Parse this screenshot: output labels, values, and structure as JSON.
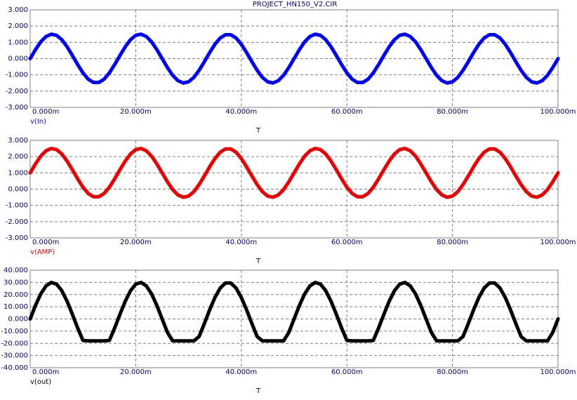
{
  "chart_data": [
    {
      "type": "line",
      "title": "PROJECT_HN150_V2.CIR",
      "xlabel": "T",
      "grid": true,
      "x": [
        0,
        0.001,
        0.002,
        0.003,
        0.004,
        0.005,
        0.006,
        0.007,
        0.008,
        0.009,
        0.01,
        0.011,
        0.012,
        0.013,
        0.014,
        0.015,
        0.016,
        0.017,
        0.018,
        0.019,
        0.02,
        0.021,
        0.022,
        0.023,
        0.024,
        0.025,
        0.026,
        0.027,
        0.028,
        0.029,
        0.03,
        0.031,
        0.032,
        0.033,
        0.034,
        0.035,
        0.036,
        0.037,
        0.038,
        0.039,
        0.04,
        0.041,
        0.042,
        0.043,
        0.044,
        0.045,
        0.046,
        0.047,
        0.048,
        0.049,
        0.05,
        0.051,
        0.052,
        0.053,
        0.054,
        0.055,
        0.056,
        0.057,
        0.058,
        0.059,
        0.06,
        0.061,
        0.062,
        0.063,
        0.064,
        0.065,
        0.066,
        0.067,
        0.068,
        0.069,
        0.07,
        0.071,
        0.072,
        0.073,
        0.074,
        0.075,
        0.076,
        0.077,
        0.078,
        0.079,
        0.08,
        0.081,
        0.082,
        0.083,
        0.084,
        0.085,
        0.086,
        0.087,
        0.088,
        0.089,
        0.09,
        0.091,
        0.092,
        0.093,
        0.094,
        0.095,
        0.096,
        0.097,
        0.098,
        0.099,
        0.1
      ],
      "series": [
        {
          "name": "v(In)",
          "color": "#0000ff",
          "values": [
            0,
            0.55,
            1.03,
            1.36,
            1.5,
            1.43,
            1.16,
            0.72,
            0.19,
            -0.37,
            -0.88,
            -1.27,
            -1.47,
            -1.47,
            -1.27,
            -0.88,
            -0.37,
            0.19,
            0.72,
            1.16,
            1.43,
            1.5,
            1.36,
            1.03,
            0.55,
            0,
            -0.55,
            -1.03,
            -1.36,
            -1.5,
            -1.43,
            -1.16,
            -0.72,
            -0.19,
            0.37,
            0.88,
            1.27,
            1.47,
            1.47,
            1.27,
            0.88,
            0.37,
            -0.19,
            -0.72,
            -1.16,
            -1.43,
            -1.5,
            -1.36,
            -1.03,
            -0.55,
            0,
            0.55,
            1.03,
            1.36,
            1.5,
            1.43,
            1.16,
            0.72,
            0.19,
            -0.37,
            -0.88,
            -1.27,
            -1.47,
            -1.47,
            -1.27,
            -0.88,
            -0.37,
            0.19,
            0.72,
            1.16,
            1.43,
            1.5,
            1.36,
            1.03,
            0.55,
            0,
            -0.55,
            -1.03,
            -1.36,
            -1.5,
            -1.43,
            -1.16,
            -0.72,
            -0.19,
            0.37,
            0.88,
            1.27,
            1.47,
            1.47,
            1.27,
            0.88,
            0.37,
            -0.19,
            -0.72,
            -1.16,
            -1.43,
            -1.5,
            -1.36,
            -1.03,
            -0.55,
            0
          ]
        }
      ],
      "xlim": [
        0,
        0.1
      ],
      "xticks": [
        {
          "value": 0,
          "label": "0.000m"
        },
        {
          "value": 0.02,
          "label": "20.000m"
        },
        {
          "value": 0.04,
          "label": "40.000m"
        },
        {
          "value": 0.06,
          "label": "60.000m"
        },
        {
          "value": 0.08,
          "label": "80.000m"
        },
        {
          "value": 0.1,
          "label": "100.000m"
        }
      ],
      "ylim": [
        -3,
        3
      ],
      "yticks": [
        {
          "value": 3,
          "label": "3.000"
        },
        {
          "value": 2,
          "label": "2.000"
        },
        {
          "value": 1,
          "label": "1.000"
        },
        {
          "value": 0,
          "label": "0.000"
        },
        {
          "value": -1,
          "label": "-1.000"
        },
        {
          "value": -2,
          "label": "-2.000"
        },
        {
          "value": -3,
          "label": "-3.000"
        }
      ]
    },
    {
      "type": "line",
      "xlabel": "T",
      "grid": true,
      "x": [
        0,
        0.001,
        0.002,
        0.003,
        0.004,
        0.005,
        0.006,
        0.007,
        0.008,
        0.009,
        0.01,
        0.011,
        0.012,
        0.013,
        0.014,
        0.015,
        0.016,
        0.017,
        0.018,
        0.019,
        0.02,
        0.021,
        0.022,
        0.023,
        0.024,
        0.025,
        0.026,
        0.027,
        0.028,
        0.029,
        0.03,
        0.031,
        0.032,
        0.033,
        0.034,
        0.035,
        0.036,
        0.037,
        0.038,
        0.039,
        0.04,
        0.041,
        0.042,
        0.043,
        0.044,
        0.045,
        0.046,
        0.047,
        0.048,
        0.049,
        0.05,
        0.051,
        0.052,
        0.053,
        0.054,
        0.055,
        0.056,
        0.057,
        0.058,
        0.059,
        0.06,
        0.061,
        0.062,
        0.063,
        0.064,
        0.065,
        0.066,
        0.067,
        0.068,
        0.069,
        0.07,
        0.071,
        0.072,
        0.073,
        0.074,
        0.075,
        0.076,
        0.077,
        0.078,
        0.079,
        0.08,
        0.081,
        0.082,
        0.083,
        0.084,
        0.085,
        0.086,
        0.087,
        0.088,
        0.089,
        0.09,
        0.091,
        0.092,
        0.093,
        0.094,
        0.095,
        0.096,
        0.097,
        0.098,
        0.099,
        0.1
      ],
      "series": [
        {
          "name": "v(AMP)",
          "color": "#ee0000",
          "values": [
            1,
            1.55,
            2.03,
            2.36,
            2.5,
            2.43,
            2.16,
            1.72,
            1.19,
            0.63,
            0.12,
            -0.27,
            -0.47,
            -0.47,
            -0.27,
            0.12,
            0.63,
            1.19,
            1.72,
            2.16,
            2.43,
            2.5,
            2.36,
            2.03,
            1.55,
            1,
            0.45,
            -0.03,
            -0.36,
            -0.5,
            -0.43,
            -0.16,
            0.28,
            0.81,
            1.37,
            1.88,
            2.27,
            2.47,
            2.47,
            2.27,
            1.88,
            1.37,
            0.81,
            0.28,
            -0.16,
            -0.43,
            -0.5,
            -0.36,
            -0.03,
            0.45,
            1,
            1.55,
            2.03,
            2.36,
            2.5,
            2.43,
            2.16,
            1.72,
            1.19,
            0.63,
            0.12,
            -0.27,
            -0.47,
            -0.47,
            -0.27,
            0.12,
            0.63,
            1.19,
            1.72,
            2.16,
            2.43,
            2.5,
            2.36,
            2.03,
            1.55,
            1,
            0.45,
            -0.03,
            -0.36,
            -0.5,
            -0.43,
            -0.16,
            0.28,
            0.81,
            1.37,
            1.88,
            2.27,
            2.47,
            2.47,
            2.27,
            1.88,
            1.37,
            0.81,
            0.28,
            -0.16,
            -0.43,
            -0.5,
            -0.36,
            -0.03,
            0.45,
            1
          ]
        }
      ],
      "xlim": [
        0,
        0.1
      ],
      "xticks": [
        {
          "value": 0,
          "label": "0.000m"
        },
        {
          "value": 0.02,
          "label": "20.000m"
        },
        {
          "value": 0.04,
          "label": "40.000m"
        },
        {
          "value": 0.06,
          "label": "60.000m"
        },
        {
          "value": 0.08,
          "label": "80.000m"
        },
        {
          "value": 0.1,
          "label": "100.000m"
        }
      ],
      "ylim": [
        -3,
        3
      ],
      "yticks": [
        {
          "value": 3,
          "label": "3.000"
        },
        {
          "value": 2,
          "label": "2.000"
        },
        {
          "value": 1,
          "label": "1.000"
        },
        {
          "value": 0,
          "label": "0.000"
        },
        {
          "value": -1,
          "label": "-1.000"
        },
        {
          "value": -2,
          "label": "-2.000"
        },
        {
          "value": -3,
          "label": "-3.000"
        }
      ]
    },
    {
      "type": "line",
      "xlabel": "T",
      "grid": true,
      "x": [
        0,
        0.001,
        0.002,
        0.003,
        0.004,
        0.005,
        0.006,
        0.007,
        0.008,
        0.009,
        0.01,
        0.011,
        0.012,
        0.013,
        0.014,
        0.015,
        0.016,
        0.017,
        0.018,
        0.019,
        0.02,
        0.021,
        0.022,
        0.023,
        0.024,
        0.025,
        0.026,
        0.027,
        0.028,
        0.029,
        0.03,
        0.031,
        0.032,
        0.033,
        0.034,
        0.035,
        0.036,
        0.037,
        0.038,
        0.039,
        0.04,
        0.041,
        0.042,
        0.043,
        0.044,
        0.045,
        0.046,
        0.047,
        0.048,
        0.049,
        0.05,
        0.051,
        0.052,
        0.053,
        0.054,
        0.055,
        0.056,
        0.057,
        0.058,
        0.059,
        0.06,
        0.061,
        0.062,
        0.063,
        0.064,
        0.065,
        0.066,
        0.067,
        0.068,
        0.069,
        0.07,
        0.071,
        0.072,
        0.073,
        0.074,
        0.075,
        0.076,
        0.077,
        0.078,
        0.079,
        0.08,
        0.081,
        0.082,
        0.083,
        0.084,
        0.085,
        0.086,
        0.087,
        0.088,
        0.089,
        0.09,
        0.091,
        0.092,
        0.093,
        0.094,
        0.095,
        0.096,
        0.097,
        0.098,
        0.099,
        0.1
      ],
      "series": [
        {
          "name": "v(out)",
          "color": "#000000",
          "values": [
            0,
            11.04,
            20.54,
            27.14,
            29.94,
            28.53,
            23.12,
            14.45,
            3.76,
            -7.46,
            -17.63,
            -18,
            -18,
            -18,
            -18,
            -17.63,
            -7.46,
            3.76,
            14.45,
            23.12,
            28.53,
            29.94,
            27.14,
            20.54,
            11.04,
            0,
            -11.04,
            -18,
            -18,
            -18,
            -18,
            -18,
            -14.45,
            -3.76,
            7.46,
            17.63,
            25.33,
            29.47,
            29.47,
            25.33,
            17.63,
            7.46,
            -3.76,
            -14.45,
            -18,
            -18,
            -18,
            -18,
            -18,
            -11.04,
            0,
            11.04,
            20.54,
            27.14,
            29.94,
            28.53,
            23.12,
            14.45,
            3.76,
            -7.46,
            -17.63,
            -18,
            -18,
            -18,
            -18,
            -17.63,
            -7.46,
            3.76,
            14.45,
            23.12,
            28.53,
            29.94,
            27.14,
            20.54,
            11.04,
            0,
            -11.04,
            -18,
            -18,
            -18,
            -18,
            -18,
            -14.45,
            -3.76,
            7.46,
            17.63,
            25.33,
            29.47,
            29.47,
            25.33,
            17.63,
            7.46,
            -3.76,
            -14.45,
            -18,
            -18,
            -18,
            -18,
            -18,
            -11.04,
            0
          ]
        }
      ],
      "xlim": [
        0,
        0.1
      ],
      "xticks": [
        {
          "value": 0,
          "label": "0.000m"
        },
        {
          "value": 0.02,
          "label": "20.000m"
        },
        {
          "value": 0.04,
          "label": "40.000m"
        },
        {
          "value": 0.06,
          "label": "60.000m"
        },
        {
          "value": 0.08,
          "label": "80.000m"
        },
        {
          "value": 0.1,
          "label": "100.000m"
        }
      ],
      "ylim": [
        -40,
        40
      ],
      "yticks": [
        {
          "value": 40,
          "label": "40.000"
        },
        {
          "value": 30,
          "label": "30.000"
        },
        {
          "value": 20,
          "label": "20.000"
        },
        {
          "value": 10,
          "label": "10.000"
        },
        {
          "value": 0,
          "label": "0.000"
        },
        {
          "value": -10,
          "label": "-10.000"
        },
        {
          "value": -20,
          "label": "-20.000"
        },
        {
          "value": -30,
          "label": "-30.000"
        },
        {
          "value": -40,
          "label": "-40.000"
        }
      ]
    }
  ]
}
